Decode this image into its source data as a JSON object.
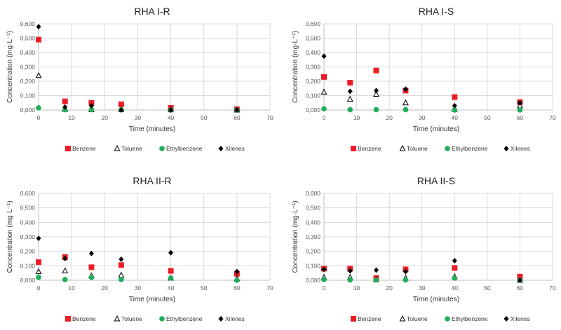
{
  "chart_data": [
    {
      "type": "scatter",
      "title": "RHA I-R",
      "xlabel": "Time (minutes)",
      "ylabel": "Concentration (mg·L⁻¹)",
      "xlim": [
        0,
        70
      ],
      "ylim": [
        0,
        0.6
      ],
      "x_ticks": [
        "0",
        "10",
        "20",
        "30",
        "40",
        "50",
        "60",
        "70"
      ],
      "y_ticks": [
        "0,000",
        "0,100",
        "0,200",
        "0,300",
        "0,400",
        "0,500",
        "0,600"
      ],
      "grid": true,
      "legend_position": "bottom",
      "x": [
        0,
        8,
        16,
        25,
        40,
        60
      ],
      "series": [
        {
          "name": "Benzene",
          "values": [
            0.49,
            0.06,
            0.05,
            0.04,
            0.015,
            0.005
          ]
        },
        {
          "name": "Toluene",
          "values": [
            0.24,
            0.005,
            0.003,
            0.003,
            0.002,
            0.0
          ]
        },
        {
          "name": "Ethylbenzene",
          "values": [
            0.015,
            0.002,
            0.002,
            0.002,
            0.0,
            0.0
          ]
        },
        {
          "name": "Xilenes",
          "values": [
            0.58,
            0.02,
            0.03,
            0.0,
            0.0,
            0.0
          ]
        }
      ]
    },
    {
      "type": "scatter",
      "title": "RHA I-S",
      "xlabel": "Time (minutes)",
      "ylabel": "Concentration (mg·L⁻¹)",
      "xlim": [
        0,
        70
      ],
      "ylim": [
        0,
        0.6
      ],
      "x_ticks": [
        "0",
        "10",
        "20",
        "30",
        "40",
        "50",
        "60",
        "70"
      ],
      "y_ticks": [
        "0,000",
        "0,100",
        "0,200",
        "0,300",
        "0,400",
        "0,500",
        "0,600"
      ],
      "grid": true,
      "legend_position": "bottom",
      "x": [
        0,
        8,
        16,
        25,
        40,
        60
      ],
      "series": [
        {
          "name": "Benzene",
          "values": [
            0.23,
            0.19,
            0.275,
            0.135,
            0.09,
            0.055
          ]
        },
        {
          "name": "Toluene",
          "values": [
            0.125,
            0.075,
            0.11,
            0.05,
            0.005,
            0.03
          ]
        },
        {
          "name": "Ethylbenzene",
          "values": [
            0.008,
            0.002,
            0.002,
            0.002,
            0.0,
            0.0
          ]
        },
        {
          "name": "Xilenes",
          "values": [
            0.375,
            0.13,
            0.135,
            0.145,
            0.03,
            0.05
          ]
        }
      ]
    },
    {
      "type": "scatter",
      "title": "RHA II-R",
      "xlabel": "Time (minutes)",
      "ylabel": "Concentration (mg·L⁻¹)",
      "xlim": [
        0,
        70
      ],
      "ylim": [
        0,
        0.6
      ],
      "x_ticks": [
        "0",
        "10",
        "20",
        "30",
        "40",
        "50",
        "60",
        "70"
      ],
      "y_ticks": [
        "0,000",
        "0,100",
        "0,200",
        "0,300",
        "0,400",
        "0,500",
        "0,600"
      ],
      "grid": true,
      "legend_position": "bottom",
      "x": [
        0,
        8,
        16,
        25,
        40,
        60
      ],
      "series": [
        {
          "name": "Benzene",
          "values": [
            0.125,
            0.16,
            0.09,
            0.105,
            0.065,
            0.045
          ]
        },
        {
          "name": "Toluene",
          "values": [
            0.06,
            0.065,
            0.03,
            0.035,
            0.015,
            0.01
          ]
        },
        {
          "name": "Ethylbenzene",
          "values": [
            0.02,
            0.005,
            0.02,
            0.005,
            0.015,
            0.0
          ]
        },
        {
          "name": "Xilenes",
          "values": [
            0.29,
            0.15,
            0.185,
            0.145,
            0.19,
            0.06
          ]
        }
      ]
    },
    {
      "type": "scatter",
      "title": "RHA II-S",
      "xlabel": "Time (minutes)",
      "ylabel": "Concentration (mg·L⁻¹)",
      "xlim": [
        0,
        70
      ],
      "ylim": [
        0,
        0.6
      ],
      "x_ticks": [
        "0",
        "10",
        "20",
        "30",
        "40",
        "50",
        "60",
        "70"
      ],
      "y_ticks": [
        "0,000",
        "0,100",
        "0,200",
        "0,300",
        "0,400",
        "0,500",
        "0,600"
      ],
      "grid": true,
      "legend_position": "bottom",
      "x": [
        0,
        8,
        16,
        25,
        40,
        60
      ],
      "series": [
        {
          "name": "Benzene",
          "values": [
            0.08,
            0.08,
            0.015,
            0.075,
            0.085,
            0.025
          ]
        },
        {
          "name": "Toluene",
          "values": [
            0.02,
            0.02,
            0.005,
            0.015,
            0.025,
            0.0
          ]
        },
        {
          "name": "Ethylbenzene",
          "values": [
            0.005,
            0.002,
            0.002,
            0.002,
            0.015,
            0.0
          ]
        },
        {
          "name": "Xilenes",
          "values": [
            0.075,
            0.065,
            0.07,
            0.06,
            0.135,
            0.0
          ]
        }
      ]
    }
  ],
  "series_styles": {
    "Benzene": {
      "marker": "square",
      "color": "#ee1c25"
    },
    "Toluene": {
      "marker": "open-triangle",
      "color": "#000000"
    },
    "Ethylbenzene": {
      "marker": "circle",
      "color": "#1fae5a"
    },
    "Xilenes": {
      "marker": "diamond",
      "color": "#000000"
    }
  },
  "colors": {
    "grid": "#d9d9d9",
    "axis": "#bfbfbf"
  }
}
